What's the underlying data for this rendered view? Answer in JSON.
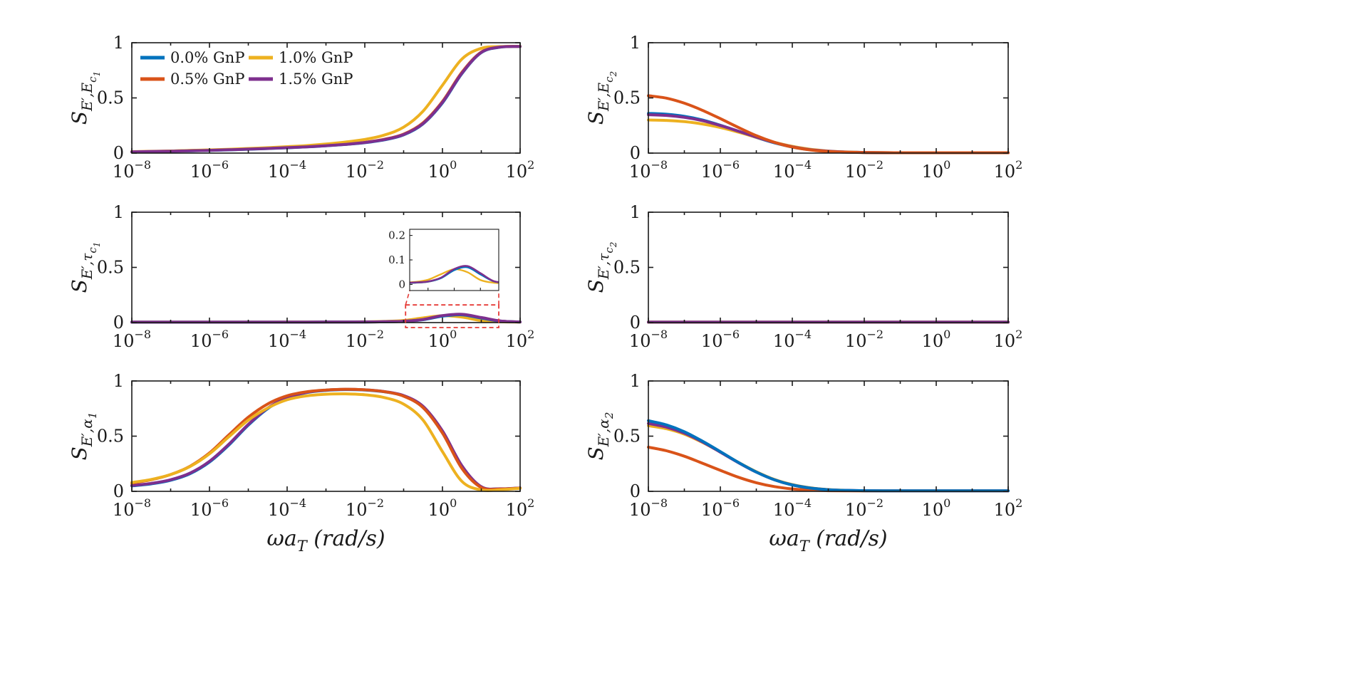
{
  "figure": {
    "background": "#ffffff",
    "palette": {
      "blue": "#0072BD",
      "red": "#D95319",
      "yellow": "#EDB120",
      "purple": "#7E2F8E"
    },
    "x_major_exponents": [
      -8,
      -6,
      -4,
      -2,
      0,
      2
    ],
    "x_minor_exponents": [
      -7,
      -5,
      -3,
      -1,
      1
    ],
    "xlim_log10": [
      -8,
      2
    ],
    "xlabel": {
      "text": "wa_T (rad/s)",
      "parts": [
        [
          "ωa",
          0
        ],
        [
          "T",
          1
        ],
        [
          " (rad/s)",
          0
        ]
      ]
    },
    "legend": {
      "entries": [
        {
          "label": "0.0% GnP",
          "color": "blue"
        },
        {
          "label": "0.5% GnP",
          "color": "red"
        },
        {
          "label": "1.0% GnP",
          "color": "yellow"
        },
        {
          "label": "1.5% GnP",
          "color": "purple"
        }
      ]
    },
    "x_log10": [
      -8,
      -7.5,
      -7,
      -6.5,
      -6,
      -5.5,
      -5,
      -4.5,
      -4,
      -3.5,
      -3,
      -2.5,
      -2,
      -1.5,
      -1,
      -0.5,
      0,
      0.5,
      1,
      1.5,
      2
    ]
  },
  "chart_data": [
    {
      "id": "S-Eprime-Ec1",
      "type": "line",
      "ylabel": {
        "text": "S_{E',E_{c1}}",
        "parts": [
          [
            "S",
            0
          ],
          [
            "E′,E",
            1
          ],
          [
            "c",
            2
          ],
          [
            "1",
            3
          ]
        ]
      },
      "ylim": [
        0,
        1
      ],
      "yticks": [
        0,
        0.5,
        1
      ],
      "legend": true,
      "series": [
        {
          "name": "0.0% GnP",
          "color": "blue",
          "y": [
            0.01,
            0.013,
            0.016,
            0.02,
            0.024,
            0.029,
            0.035,
            0.041,
            0.048,
            0.056,
            0.066,
            0.078,
            0.094,
            0.12,
            0.165,
            0.265,
            0.455,
            0.72,
            0.91,
            0.96,
            0.966
          ]
        },
        {
          "name": "0.5% GnP",
          "color": "red",
          "y": [
            0.013,
            0.016,
            0.019,
            0.023,
            0.027,
            0.032,
            0.038,
            0.044,
            0.051,
            0.059,
            0.069,
            0.081,
            0.098,
            0.125,
            0.172,
            0.275,
            0.468,
            0.732,
            0.916,
            0.962,
            0.967
          ]
        },
        {
          "name": "1.0% GnP",
          "color": "yellow",
          "y": [
            0.012,
            0.015,
            0.019,
            0.024,
            0.029,
            0.035,
            0.042,
            0.049,
            0.058,
            0.068,
            0.082,
            0.1,
            0.124,
            0.163,
            0.235,
            0.38,
            0.615,
            0.852,
            0.95,
            0.965,
            0.967
          ]
        },
        {
          "name": "1.5% GnP",
          "color": "purple",
          "y": [
            0.011,
            0.014,
            0.017,
            0.021,
            0.025,
            0.03,
            0.036,
            0.042,
            0.049,
            0.057,
            0.067,
            0.079,
            0.096,
            0.122,
            0.168,
            0.268,
            0.46,
            0.724,
            0.912,
            0.961,
            0.966
          ]
        }
      ]
    },
    {
      "id": "S-Eprime-Ec2",
      "type": "line",
      "ylabel": {
        "text": "S_{E',E_{c2}}",
        "parts": [
          [
            "S",
            0
          ],
          [
            "E′,E",
            1
          ],
          [
            "c",
            2
          ],
          [
            "2",
            3
          ]
        ]
      },
      "ylim": [
        0,
        1
      ],
      "yticks": [
        0,
        0.5,
        1
      ],
      "series": [
        {
          "name": "0.0% GnP",
          "color": "blue",
          "y": [
            0.36,
            0.352,
            0.333,
            0.3,
            0.252,
            0.198,
            0.142,
            0.093,
            0.055,
            0.03,
            0.016,
            0.009,
            0.006,
            0.004,
            0.003,
            0.003,
            0.003,
            0.003,
            0.003,
            0.003,
            0.003
          ]
        },
        {
          "name": "1.0% GnP",
          "color": "yellow",
          "y": [
            0.3,
            0.296,
            0.285,
            0.264,
            0.232,
            0.19,
            0.143,
            0.098,
            0.061,
            0.035,
            0.019,
            0.01,
            0.006,
            0.004,
            0.003,
            0.003,
            0.003,
            0.003,
            0.003,
            0.003,
            0.003
          ]
        },
        {
          "name": "1.5% GnP",
          "color": "purple",
          "y": [
            0.348,
            0.341,
            0.324,
            0.294,
            0.25,
            0.199,
            0.145,
            0.096,
            0.057,
            0.031,
            0.017,
            0.009,
            0.006,
            0.004,
            0.003,
            0.003,
            0.003,
            0.003,
            0.003,
            0.003,
            0.003
          ]
        },
        {
          "name": "0.5% GnP",
          "color": "red",
          "y": [
            0.52,
            0.498,
            0.452,
            0.388,
            0.312,
            0.233,
            0.158,
            0.098,
            0.054,
            0.028,
            0.014,
            0.008,
            0.005,
            0.004,
            0.003,
            0.003,
            0.003,
            0.003,
            0.003,
            0.003,
            0.003
          ]
        }
      ]
    },
    {
      "id": "S-Eprime-tauc1",
      "type": "line",
      "ylabel": {
        "text": "S_{E',tau_{c1}}",
        "parts": [
          [
            "S",
            0
          ],
          [
            "E′,τ",
            1
          ],
          [
            "c",
            2
          ],
          [
            "1",
            3
          ]
        ]
      },
      "ylim": [
        0,
        1
      ],
      "yticks": [
        0,
        0.5,
        1
      ],
      "series": [
        {
          "name": "1.0% GnP",
          "color": "yellow",
          "y": [
            0.004,
            0.004,
            0.004,
            0.004,
            0.004,
            0.004,
            0.004,
            0.004,
            0.005,
            0.005,
            0.005,
            0.006,
            0.007,
            0.01,
            0.019,
            0.042,
            0.062,
            0.05,
            0.018,
            0.007,
            0.005
          ]
        },
        {
          "name": "0.5% GnP",
          "color": "red",
          "y": [
            0.004,
            0.004,
            0.004,
            0.004,
            0.004,
            0.004,
            0.004,
            0.004,
            0.004,
            0.004,
            0.005,
            0.005,
            0.005,
            0.007,
            0.011,
            0.027,
            0.06,
            0.072,
            0.042,
            0.013,
            0.006
          ]
        },
        {
          "name": "0.0% GnP",
          "color": "blue",
          "y": [
            0.004,
            0.004,
            0.004,
            0.004,
            0.004,
            0.004,
            0.004,
            0.004,
            0.004,
            0.004,
            0.005,
            0.005,
            0.005,
            0.007,
            0.011,
            0.026,
            0.058,
            0.07,
            0.041,
            0.013,
            0.006
          ]
        },
        {
          "name": "1.5% GnP",
          "color": "purple",
          "y": [
            0.004,
            0.004,
            0.004,
            0.004,
            0.004,
            0.004,
            0.004,
            0.004,
            0.004,
            0.004,
            0.005,
            0.005,
            0.006,
            0.008,
            0.012,
            0.028,
            0.063,
            0.075,
            0.046,
            0.014,
            0.006
          ]
        }
      ],
      "inset": {
        "yticks": [
          0,
          0.1,
          0.2
        ],
        "ylim": [
          -0.025,
          0.225
        ],
        "xlim": [
          -1.7,
          1.7
        ],
        "pos": {
          "dx": 390,
          "dy": 24,
          "w": 125,
          "h": 86
        },
        "zoom_rect": {
          "x0": -0.95,
          "x1": 1.45,
          "y0": -0.045,
          "y1": 0.16
        },
        "color": "#e53935"
      }
    },
    {
      "id": "S-Eprime-tauc2",
      "type": "line",
      "ylabel": {
        "text": "S_{E',tau_{c2}}",
        "parts": [
          [
            "S",
            0
          ],
          [
            "E′,τ",
            1
          ],
          [
            "c",
            2
          ],
          [
            "2",
            3
          ]
        ]
      },
      "ylim": [
        0,
        1
      ],
      "yticks": [
        0,
        0.5,
        1
      ],
      "series": [
        {
          "name": "0.0% GnP",
          "color": "blue",
          "y": [
            0.004,
            0.004,
            0.004,
            0.004,
            0.004,
            0.004,
            0.004,
            0.004,
            0.004,
            0.004,
            0.004,
            0.004,
            0.004,
            0.004,
            0.004,
            0.004,
            0.004,
            0.004,
            0.004,
            0.004,
            0.004
          ]
        },
        {
          "name": "0.5% GnP",
          "color": "red",
          "y": [
            0.004,
            0.004,
            0.004,
            0.004,
            0.004,
            0.004,
            0.004,
            0.004,
            0.004,
            0.004,
            0.004,
            0.004,
            0.004,
            0.004,
            0.004,
            0.004,
            0.004,
            0.004,
            0.004,
            0.004,
            0.004
          ]
        },
        {
          "name": "1.0% GnP",
          "color": "yellow",
          "y": [
            0.004,
            0.004,
            0.004,
            0.004,
            0.004,
            0.004,
            0.004,
            0.004,
            0.004,
            0.004,
            0.004,
            0.004,
            0.004,
            0.004,
            0.004,
            0.004,
            0.004,
            0.004,
            0.004,
            0.004,
            0.004
          ]
        },
        {
          "name": "1.5% GnP",
          "color": "purple",
          "y": [
            0.004,
            0.004,
            0.004,
            0.004,
            0.004,
            0.004,
            0.004,
            0.004,
            0.004,
            0.004,
            0.004,
            0.004,
            0.004,
            0.004,
            0.004,
            0.004,
            0.004,
            0.004,
            0.004,
            0.004,
            0.004
          ]
        }
      ]
    },
    {
      "id": "S-Eprime-alpha1",
      "type": "line",
      "ylabel": {
        "text": "S_{E',alpha_1}",
        "parts": [
          [
            "S",
            0
          ],
          [
            "E′,α",
            1
          ],
          [
            "1",
            2
          ]
        ]
      },
      "ylim": [
        0,
        1
      ],
      "yticks": [
        0,
        0.5,
        1
      ],
      "series": [
        {
          "name": "0.0% GnP",
          "color": "blue",
          "y": [
            0.05,
            0.068,
            0.1,
            0.16,
            0.265,
            0.42,
            0.6,
            0.75,
            0.845,
            0.895,
            0.915,
            0.922,
            0.918,
            0.902,
            0.865,
            0.765,
            0.54,
            0.225,
            0.04,
            0.022,
            0.03
          ]
        },
        {
          "name": "1.5% GnP",
          "color": "purple",
          "y": [
            0.053,
            0.072,
            0.105,
            0.166,
            0.272,
            0.428,
            0.607,
            0.755,
            0.848,
            0.897,
            0.917,
            0.924,
            0.92,
            0.904,
            0.868,
            0.77,
            0.548,
            0.232,
            0.042,
            0.023,
            0.031
          ]
        },
        {
          "name": "0.5% GnP",
          "color": "red",
          "y": [
            0.075,
            0.105,
            0.152,
            0.228,
            0.348,
            0.512,
            0.672,
            0.792,
            0.866,
            0.902,
            0.918,
            0.925,
            0.92,
            0.903,
            0.862,
            0.758,
            0.528,
            0.208,
            0.035,
            0.021,
            0.03
          ]
        },
        {
          "name": "1.0% GnP",
          "color": "yellow",
          "y": [
            0.08,
            0.108,
            0.152,
            0.225,
            0.34,
            0.495,
            0.645,
            0.755,
            0.83,
            0.865,
            0.88,
            0.883,
            0.875,
            0.85,
            0.79,
            0.645,
            0.36,
            0.09,
            0.012,
            0.015,
            0.028
          ]
        }
      ]
    },
    {
      "id": "S-Eprime-alpha2",
      "type": "line",
      "ylabel": {
        "text": "S_{E',alpha_2}",
        "parts": [
          [
            "S",
            0
          ],
          [
            "E′,α",
            1
          ],
          [
            "2",
            2
          ]
        ]
      },
      "ylim": [
        0,
        1
      ],
      "yticks": [
        0,
        0.5,
        1
      ],
      "series": [
        {
          "name": "0.5% GnP",
          "color": "red",
          "y": [
            0.4,
            0.368,
            0.318,
            0.255,
            0.19,
            0.128,
            0.078,
            0.043,
            0.022,
            0.011,
            0.006,
            0.005,
            0.004,
            0.004,
            0.004,
            0.004,
            0.004,
            0.004,
            0.004,
            0.004,
            0.004
          ]
        },
        {
          "name": "1.0% GnP",
          "color": "yellow",
          "y": [
            0.595,
            0.567,
            0.518,
            0.444,
            0.356,
            0.263,
            0.178,
            0.108,
            0.061,
            0.032,
            0.016,
            0.009,
            0.006,
            0.005,
            0.005,
            0.005,
            0.005,
            0.005,
            0.005,
            0.005,
            0.005
          ]
        },
        {
          "name": "1.5% GnP",
          "color": "purple",
          "y": [
            0.615,
            0.582,
            0.527,
            0.448,
            0.355,
            0.26,
            0.174,
            0.105,
            0.058,
            0.03,
            0.015,
            0.009,
            0.006,
            0.005,
            0.005,
            0.005,
            0.005,
            0.005,
            0.005,
            0.005,
            0.005
          ]
        },
        {
          "name": "0.0% GnP",
          "color": "blue",
          "y": [
            0.64,
            0.602,
            0.54,
            0.455,
            0.36,
            0.262,
            0.175,
            0.105,
            0.058,
            0.03,
            0.015,
            0.009,
            0.006,
            0.005,
            0.005,
            0.005,
            0.005,
            0.005,
            0.005,
            0.005,
            0.005
          ]
        }
      ]
    }
  ]
}
